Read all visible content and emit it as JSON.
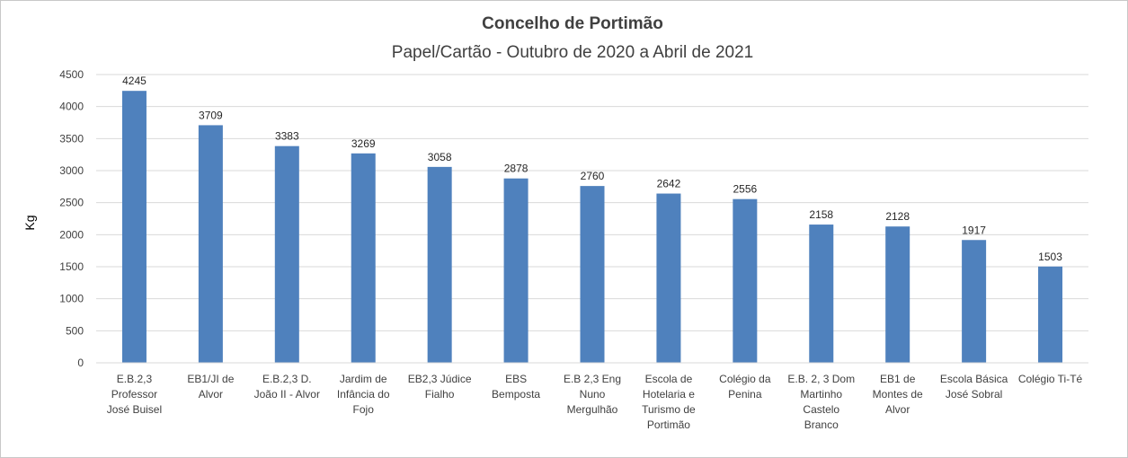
{
  "chart_data": {
    "type": "bar",
    "title": "Concelho de Portimão",
    "subtitle": "Papel/Cartão - Outubro de 2020 a Abril de 2021",
    "xlabel": "",
    "ylabel": "Kg",
    "ylim": [
      0,
      4500
    ],
    "yticks": [
      0,
      500,
      1000,
      1500,
      2000,
      2500,
      3000,
      3500,
      4000,
      4500
    ],
    "grid": true,
    "legend": "none",
    "bar_color": "#4f81bd",
    "categories": [
      [
        "E.B.2,3",
        "Professor",
        "José Buisel"
      ],
      [
        "EB1/JI de",
        "Alvor"
      ],
      [
        "E.B.2,3 D.",
        "João II - Alvor"
      ],
      [
        "Jardim de",
        "Infância do",
        "Fojo"
      ],
      [
        "EB2,3 Júdice",
        "Fialho"
      ],
      [
        "EBS",
        "Bemposta"
      ],
      [
        "E.B 2,3 Eng",
        "Nuno",
        "Mergulhão"
      ],
      [
        "Escola de",
        "Hotelaria e",
        "Turismo de",
        "Portimão"
      ],
      [
        "Colégio da",
        "Penina"
      ],
      [
        "E.B. 2, 3 Dom",
        "Martinho",
        "Castelo",
        "Branco"
      ],
      [
        "EB1 de",
        "Montes de",
        "Alvor"
      ],
      [
        "Escola Básica",
        "José Sobral"
      ],
      [
        "Colégio Ti-Té"
      ]
    ],
    "values": [
      4245,
      3709,
      3383,
      3269,
      3058,
      2878,
      2760,
      2642,
      2556,
      2158,
      2128,
      1917,
      1503
    ]
  }
}
